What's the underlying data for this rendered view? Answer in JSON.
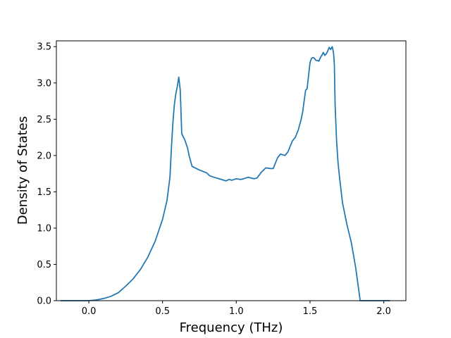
{
  "chart_data": {
    "type": "line",
    "title": "",
    "xlabel": "Frequency (THz)",
    "ylabel": "Density of States",
    "xlim": [
      -0.22,
      2.15
    ],
    "ylim": [
      0,
      3.58
    ],
    "xticks": [
      0.0,
      0.5,
      1.0,
      1.5,
      2.0
    ],
    "xtick_labels": [
      "0.0",
      "0.5",
      "1.0",
      "1.5",
      "2.0"
    ],
    "yticks": [
      0.0,
      0.5,
      1.0,
      1.5,
      2.0,
      2.5,
      3.0,
      3.5
    ],
    "ytick_labels": [
      "0.0",
      "0.5",
      "1.0",
      "1.5",
      "2.0",
      "2.5",
      "3.0",
      "3.5"
    ],
    "grid": false,
    "series": [
      {
        "color": "#1f77b4",
        "x": [
          -0.19,
          -0.1,
          0.0,
          0.05,
          0.1,
          0.15,
          0.2,
          0.25,
          0.3,
          0.35,
          0.4,
          0.45,
          0.5,
          0.53,
          0.55,
          0.56,
          0.57,
          0.58,
          0.59,
          0.6,
          0.61,
          0.62,
          0.63,
          0.65,
          0.67,
          0.68,
          0.7,
          0.75,
          0.8,
          0.82,
          0.85,
          0.9,
          0.93,
          0.95,
          0.97,
          1.0,
          1.03,
          1.05,
          1.08,
          1.12,
          1.14,
          1.17,
          1.2,
          1.23,
          1.25,
          1.28,
          1.3,
          1.33,
          1.35,
          1.38,
          1.4,
          1.42,
          1.44,
          1.45,
          1.46,
          1.47,
          1.48,
          1.5,
          1.51,
          1.52,
          1.53,
          1.54,
          1.55,
          1.56,
          1.57,
          1.58,
          1.59,
          1.6,
          1.61,
          1.62,
          1.63,
          1.64,
          1.65,
          1.655,
          1.66,
          1.665,
          1.67,
          1.68,
          1.69,
          1.7,
          1.72,
          1.75,
          1.78,
          1.81,
          1.83,
          1.84,
          1.85,
          1.9,
          2.04
        ],
        "y": [
          0.0,
          0.0,
          0.0,
          0.01,
          0.03,
          0.06,
          0.11,
          0.2,
          0.3,
          0.43,
          0.6,
          0.82,
          1.12,
          1.38,
          1.7,
          2.1,
          2.45,
          2.7,
          2.85,
          2.95,
          3.08,
          2.9,
          2.3,
          2.22,
          2.1,
          2.0,
          1.85,
          1.8,
          1.76,
          1.72,
          1.7,
          1.67,
          1.65,
          1.67,
          1.66,
          1.68,
          1.67,
          1.68,
          1.7,
          1.68,
          1.69,
          1.77,
          1.83,
          1.82,
          1.82,
          1.97,
          2.02,
          2.0,
          2.05,
          2.2,
          2.25,
          2.35,
          2.5,
          2.6,
          2.75,
          2.9,
          2.92,
          3.28,
          3.34,
          3.35,
          3.34,
          3.31,
          3.31,
          3.3,
          3.35,
          3.38,
          3.42,
          3.38,
          3.4,
          3.44,
          3.49,
          3.46,
          3.5,
          3.46,
          3.4,
          3.25,
          2.7,
          2.2,
          1.9,
          1.7,
          1.35,
          1.05,
          0.8,
          0.45,
          0.15,
          0.0,
          0.0,
          0.0,
          0.0
        ]
      }
    ]
  }
}
